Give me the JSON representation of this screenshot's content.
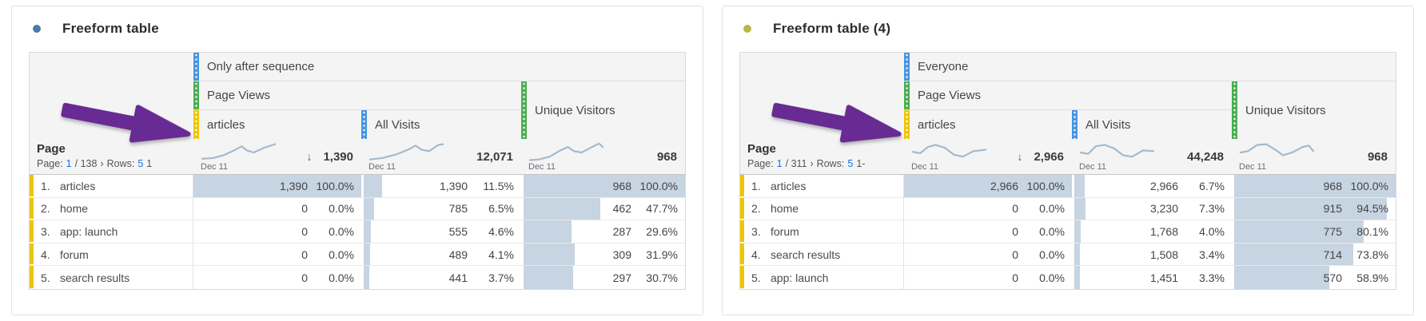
{
  "colors": {
    "segment_blue": "#4695e2",
    "metric_green": "#4bae52",
    "dimension_yellow": "#edc600",
    "bar_fill": "#c7d4e1",
    "link_blue": "#1473e6",
    "arrow_purple": "#682a93",
    "sparkline": "#a5bacc",
    "title_dot_left": "#4a7ba7",
    "title_dot_right": "#b4ba4a"
  },
  "panels": [
    {
      "title": "Freeform table",
      "header": {
        "segment": "Only after sequence",
        "metric_group": "Page Views",
        "col1": "articles",
        "col2": "All Visits",
        "col3": "Unique Visitors"
      },
      "dimension": "Page",
      "pagination": {
        "page_label": "Page:",
        "page": "1",
        "total": "/ 138",
        "chevron": "›",
        "rows_label": "Rows:",
        "rows": "5",
        "tail": "1"
      },
      "totals": [
        {
          "value": "1,390",
          "sort_icon": "↓",
          "date": "Dec 11",
          "spark": [
            [
              2,
              24
            ],
            [
              16,
              23
            ],
            [
              30,
              19
            ],
            [
              44,
              12
            ],
            [
              54,
              6
            ],
            [
              61,
              12
            ],
            [
              70,
              15
            ],
            [
              84,
              8
            ],
            [
              98,
              3
            ]
          ]
        },
        {
          "value": "12,071",
          "date": "Dec 11",
          "spark": [
            [
              2,
              25
            ],
            [
              18,
              23
            ],
            [
              36,
              18
            ],
            [
              52,
              11
            ],
            [
              62,
              5
            ],
            [
              70,
              11
            ],
            [
              80,
              13
            ],
            [
              92,
              4
            ],
            [
              98,
              3
            ]
          ]
        },
        {
          "value": "968",
          "date": "Dec 11",
          "spark": [
            [
              2,
              26
            ],
            [
              14,
              25
            ],
            [
              28,
              21
            ],
            [
              42,
              12
            ],
            [
              52,
              7
            ],
            [
              60,
              13
            ],
            [
              70,
              15
            ],
            [
              84,
              7
            ],
            [
              93,
              2
            ],
            [
              98,
              7
            ]
          ]
        }
      ],
      "rows": [
        {
          "rank": "1.",
          "label": "articles",
          "cells": [
            {
              "value": "1,390",
              "pct": "100.0%",
              "pct_num": 100
            },
            {
              "value": "1,390",
              "pct": "11.5%",
              "pct_num": 11.5
            },
            {
              "value": "968",
              "pct": "100.0%",
              "pct_num": 100
            }
          ]
        },
        {
          "rank": "2.",
          "label": "home",
          "cells": [
            {
              "value": "0",
              "pct": "0.0%",
              "pct_num": 0
            },
            {
              "value": "785",
              "pct": "6.5%",
              "pct_num": 6.5
            },
            {
              "value": "462",
              "pct": "47.7%",
              "pct_num": 47.7
            }
          ]
        },
        {
          "rank": "3.",
          "label": "app: launch",
          "cells": [
            {
              "value": "0",
              "pct": "0.0%",
              "pct_num": 0
            },
            {
              "value": "555",
              "pct": "4.6%",
              "pct_num": 4.6
            },
            {
              "value": "287",
              "pct": "29.6%",
              "pct_num": 29.6
            }
          ]
        },
        {
          "rank": "4.",
          "label": "forum",
          "cells": [
            {
              "value": "0",
              "pct": "0.0%",
              "pct_num": 0
            },
            {
              "value": "489",
              "pct": "4.1%",
              "pct_num": 4.1
            },
            {
              "value": "309",
              "pct": "31.9%",
              "pct_num": 31.9
            }
          ]
        },
        {
          "rank": "5.",
          "label": "search results",
          "cells": [
            {
              "value": "0",
              "pct": "0.0%",
              "pct_num": 0
            },
            {
              "value": "441",
              "pct": "3.7%",
              "pct_num": 3.7
            },
            {
              "value": "297",
              "pct": "30.7%",
              "pct_num": 30.7
            }
          ]
        }
      ]
    },
    {
      "title": "Freeform table (4)",
      "header": {
        "segment": "Everyone",
        "metric_group": "Page Views",
        "col1": "articles",
        "col2": "All Visits",
        "col3": "Unique Visitors"
      },
      "dimension": "Page",
      "pagination": {
        "page_label": "Page:",
        "page": "1",
        "total": "/ 311",
        "chevron": "›",
        "rows_label": "Rows:",
        "rows": "5",
        "tail": "1-"
      },
      "totals": [
        {
          "value": "2,966",
          "sort_icon": "↓",
          "date": "Dec 11",
          "spark": [
            [
              2,
              14
            ],
            [
              12,
              16
            ],
            [
              22,
              7
            ],
            [
              32,
              4
            ],
            [
              44,
              8
            ],
            [
              56,
              18
            ],
            [
              68,
              21
            ],
            [
              82,
              13
            ],
            [
              98,
              11
            ]
          ]
        },
        {
          "value": "44,248",
          "date": "Dec 11",
          "spark": [
            [
              2,
              15
            ],
            [
              12,
              17
            ],
            [
              22,
              6
            ],
            [
              34,
              4
            ],
            [
              46,
              9
            ],
            [
              58,
              19
            ],
            [
              70,
              21
            ],
            [
              84,
              12
            ],
            [
              98,
              13
            ]
          ]
        },
        {
          "value": "968",
          "date": "Dec 11",
          "spark": [
            [
              2,
              15
            ],
            [
              12,
              13
            ],
            [
              24,
              4
            ],
            [
              36,
              3
            ],
            [
              48,
              11
            ],
            [
              58,
              19
            ],
            [
              70,
              15
            ],
            [
              84,
              7
            ],
            [
              92,
              5
            ],
            [
              98,
              13
            ]
          ]
        }
      ],
      "rows": [
        {
          "rank": "1.",
          "label": "articles",
          "cells": [
            {
              "value": "2,966",
              "pct": "100.0%",
              "pct_num": 100
            },
            {
              "value": "2,966",
              "pct": "6.7%",
              "pct_num": 6.7
            },
            {
              "value": "968",
              "pct": "100.0%",
              "pct_num": 100
            }
          ]
        },
        {
          "rank": "2.",
          "label": "home",
          "cells": [
            {
              "value": "0",
              "pct": "0.0%",
              "pct_num": 0
            },
            {
              "value": "3,230",
              "pct": "7.3%",
              "pct_num": 7.3
            },
            {
              "value": "915",
              "pct": "94.5%",
              "pct_num": 94.5
            }
          ]
        },
        {
          "rank": "3.",
          "label": "forum",
          "cells": [
            {
              "value": "0",
              "pct": "0.0%",
              "pct_num": 0
            },
            {
              "value": "1,768",
              "pct": "4.0%",
              "pct_num": 4.0
            },
            {
              "value": "775",
              "pct": "80.1%",
              "pct_num": 80.1
            }
          ]
        },
        {
          "rank": "4.",
          "label": "search results",
          "cells": [
            {
              "value": "0",
              "pct": "0.0%",
              "pct_num": 0
            },
            {
              "value": "1,508",
              "pct": "3.4%",
              "pct_num": 3.4
            },
            {
              "value": "714",
              "pct": "73.8%",
              "pct_num": 73.8
            }
          ]
        },
        {
          "rank": "5.",
          "label": "app: launch",
          "cells": [
            {
              "value": "0",
              "pct": "0.0%",
              "pct_num": 0
            },
            {
              "value": "1,451",
              "pct": "3.3%",
              "pct_num": 3.3
            },
            {
              "value": "570",
              "pct": "58.9%",
              "pct_num": 58.9
            }
          ]
        }
      ]
    }
  ]
}
